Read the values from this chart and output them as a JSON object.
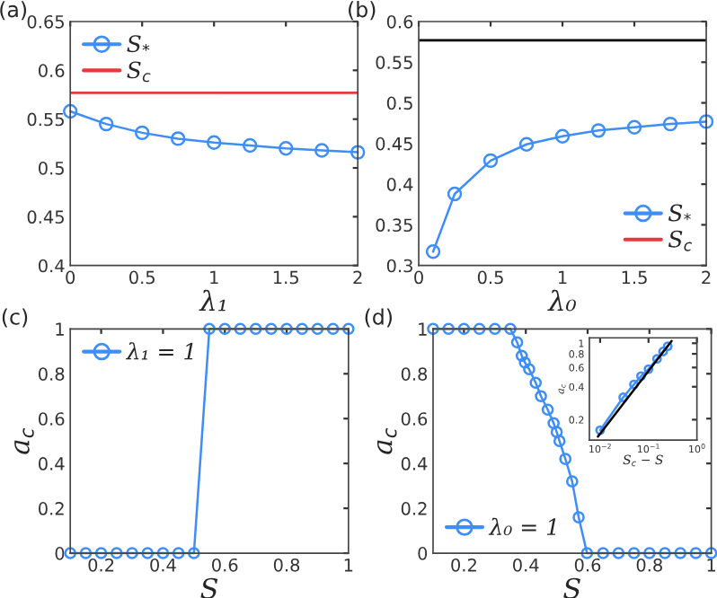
{
  "chart_data": [
    {
      "type": "line",
      "title": "(a)",
      "xlabel": "λ₁",
      "x": [
        0,
        0.25,
        0.5,
        0.75,
        1,
        1.25,
        1.5,
        1.75,
        2
      ],
      "series": [
        {
          "name": "S$_{*}$",
          "color": "#3f8ef7",
          "values": [
            0.558,
            0.545,
            0.536,
            0.53,
            0.526,
            0.523,
            0.52,
            0.518,
            0.516
          ]
        }
      ],
      "ref_lines": [
        {
          "axis": "y",
          "value": 0.577,
          "label": "S$_{c}$",
          "color": "#e8383d",
          "line_style": "solid"
        }
      ],
      "xlim": [
        0,
        2
      ],
      "xticks": [
        0,
        0.5,
        1,
        1.5,
        2
      ],
      "ylim": [
        0.4,
        0.65
      ],
      "yticks": [
        0.4,
        0.45,
        0.5,
        0.55,
        0.6,
        0.65
      ],
      "marker": "circle",
      "legend": "top left",
      "grid": false
    },
    {
      "type": "line",
      "title": "(b)",
      "xlabel": "λ₀",
      "x": [
        0.1,
        0.25,
        0.5,
        0.75,
        1,
        1.25,
        1.5,
        1.75,
        2
      ],
      "series": [
        {
          "name": "S$_{*}$",
          "color": "#3f8ef7",
          "values": [
            0.317,
            0.388,
            0.429,
            0.449,
            0.459,
            0.466,
            0.47,
            0.474,
            0.477
          ]
        },
        {
          "name": "S$_{c}$",
          "color": "#e8383d",
          "values": [
            null,
            null,
            null,
            null,
            null,
            null,
            null,
            null,
            null
          ],
          "marker": "none"
        }
      ],
      "ref_lines": [
        {
          "axis": "y",
          "value": 0.577,
          "color": "#000000",
          "line_style": "solid"
        }
      ],
      "xlim": [
        0,
        2
      ],
      "xticks": [
        0,
        0.5,
        1,
        1.5,
        2
      ],
      "ylim": [
        0.3,
        0.6
      ],
      "yticks": [
        0.3,
        0.35,
        0.4,
        0.45,
        0.5,
        0.55,
        0.6
      ],
      "marker": "circle",
      "legend": "bottom right",
      "grid": false
    },
    {
      "type": "line",
      "title": "(c)",
      "xlabel": "S",
      "ylabel": "a$_{c}$",
      "x": [
        0.1,
        0.15,
        0.2,
        0.25,
        0.3,
        0.35,
        0.4,
        0.45,
        0.5,
        0.55,
        0.6,
        0.65,
        0.7,
        0.75,
        0.8,
        0.85,
        0.9,
        0.95,
        1
      ],
      "series": [
        {
          "name": "λ₁ = 1",
          "color": "#3f8ef7",
          "values": [
            0,
            0,
            0,
            0,
            0,
            0,
            0,
            0,
            0,
            1,
            1,
            1,
            1,
            1,
            1,
            1,
            1,
            1,
            1
          ]
        }
      ],
      "xlim": [
        0.1,
        1
      ],
      "xticks": [
        0.2,
        0.4,
        0.6,
        0.8,
        1
      ],
      "ylim": [
        0,
        1
      ],
      "yticks": [
        0,
        0.2,
        0.4,
        0.6,
        0.8,
        1
      ],
      "marker": "circle",
      "legend": "top left",
      "grid": false
    },
    {
      "type": "line",
      "title": "(d)",
      "xlabel": "S",
      "ylabel": "a$_{c}$",
      "x": [
        0.1,
        0.15,
        0.2,
        0.25,
        0.3,
        0.35,
        0.372,
        0.387,
        0.397,
        0.411,
        0.432,
        0.449,
        0.471,
        0.49,
        0.5,
        0.509,
        0.528,
        0.55,
        0.571,
        0.598,
        0.65,
        0.7,
        0.75,
        0.8,
        0.85,
        0.9,
        0.95,
        1
      ],
      "series": [
        {
          "name": "λ₀ = 1",
          "color": "#3f8ef7",
          "values": [
            1,
            1,
            1,
            1,
            1,
            1,
            0.94,
            0.88,
            0.85,
            0.82,
            0.76,
            0.7,
            0.64,
            0.58,
            0.54,
            0.5,
            0.42,
            0.32,
            0.16,
            0,
            0,
            0,
            0,
            0,
            0,
            0,
            0,
            0
          ]
        }
      ],
      "xlim": [
        0.1,
        1
      ],
      "xticks": [
        0.2,
        0.4,
        0.6,
        0.8,
        1
      ],
      "ylim": [
        0,
        1
      ],
      "yticks": [
        0,
        0.2,
        0.4,
        0.6,
        0.8,
        1
      ],
      "marker": "circle",
      "legend": "bottom left",
      "grid": false
    },
    {
      "type": "line",
      "xlabel": "S$_{c}$ − S",
      "ylabel": "a$_{c}$",
      "log": "xy",
      "series": [
        {
          "color": "#3f8ef7",
          "x": [
            0.01,
            0.03,
            0.05,
            0.07,
            0.1,
            0.15,
            0.2,
            0.25
          ],
          "values": [
            0.16,
            0.32,
            0.42,
            0.5,
            0.58,
            0.72,
            0.84,
            0.94
          ]
        },
        {
          "color": "#000000",
          "x": [
            0.009,
            0.3
          ],
          "values": [
            0.14,
            1.05
          ],
          "marker": "none"
        }
      ],
      "xlim": [
        0.006,
        1
      ],
      "xticks": [
        {
          "value": 0.01,
          "label": "10$^{−2}$"
        },
        {
          "value": 0.1,
          "label": "10$^{−1}$"
        },
        {
          "value": 1,
          "label": "10$^{0}$"
        }
      ],
      "ylim": [
        0.13,
        1.12
      ],
      "yticks": [
        0.2,
        0.4,
        0.6,
        0.8,
        1
      ],
      "marker": "circle",
      "grid": false
    }
  ]
}
